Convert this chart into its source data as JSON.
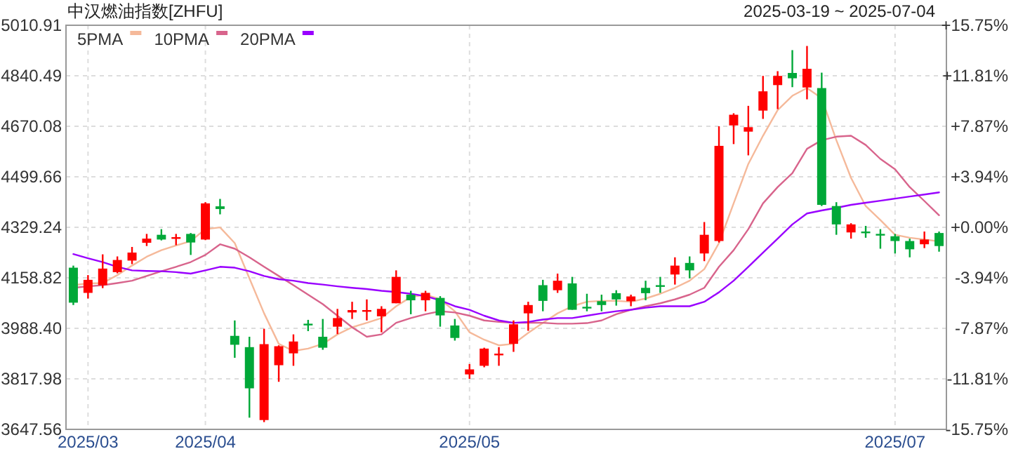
{
  "chart_data": {
    "type": "candlestick",
    "title": "中汉燃油指数[ZHFU]",
    "subtitle": "2025-03-19 ~ 2025-07-04",
    "categories": [
      null,
      "2025/03",
      null,
      null,
      null,
      null,
      null,
      null,
      null,
      "2025/04",
      null,
      null,
      null,
      null,
      null,
      null,
      null,
      null,
      null,
      null,
      null,
      null,
      null,
      null,
      null,
      null,
      null,
      "2025/05",
      null,
      null,
      null,
      null,
      null,
      null,
      null,
      null,
      null,
      null,
      null,
      null,
      null,
      null,
      null,
      null,
      null,
      null,
      null,
      null,
      null,
      null,
      null,
      null,
      null,
      null,
      null,
      null,
      "2025/07",
      null,
      null,
      null
    ],
    "ohlc": [
      [
        4193,
        4200,
        4067,
        4075
      ],
      [
        4108,
        4168,
        4089,
        4152
      ],
      [
        4134,
        4238,
        4124,
        4190
      ],
      [
        4178,
        4231,
        4174,
        4219
      ],
      [
        4217,
        4263,
        4205,
        4244
      ],
      [
        4277,
        4307,
        4266,
        4291
      ],
      [
        4304,
        4323,
        4285,
        4288
      ],
      [
        4294,
        4307,
        4269,
        4296
      ],
      [
        4307,
        4310,
        4236,
        4278
      ],
      [
        4288,
        4414,
        4286,
        4410
      ],
      [
        4400,
        4425,
        4373,
        4391
      ],
      [
        3963,
        4015,
        3889,
        3933
      ],
      [
        3925,
        3960,
        3687,
        3786
      ],
      [
        3679,
        3987,
        3672,
        3935
      ],
      [
        3864,
        3931,
        3808,
        3928
      ],
      [
        3904,
        3968,
        3862,
        3944
      ],
      [
        4004,
        4017,
        3979,
        4001
      ],
      [
        3960,
        4020,
        3916,
        3923
      ],
      [
        3994,
        4054,
        3969,
        4023
      ],
      [
        4042,
        4078,
        4020,
        4050
      ],
      [
        4048,
        4086,
        4015,
        4050
      ],
      [
        4029,
        4063,
        3975,
        4054
      ],
      [
        4073,
        4184,
        4073,
        4162
      ],
      [
        4102,
        4115,
        4036,
        4083
      ],
      [
        4083,
        4115,
        4046,
        4108
      ],
      [
        4091,
        4097,
        3994,
        4032
      ],
      [
        3998,
        4020,
        3947,
        3956
      ],
      [
        3833,
        3868,
        3818,
        3850
      ],
      [
        3862,
        3923,
        3857,
        3920
      ],
      [
        3898,
        3925,
        3862,
        3903
      ],
      [
        3936,
        4015,
        3909,
        4002
      ],
      [
        4039,
        4078,
        3980,
        4067
      ],
      [
        4134,
        4152,
        4046,
        4081
      ],
      [
        4117,
        4173,
        4108,
        4149
      ],
      [
        4140,
        4162,
        4051,
        4051
      ],
      [
        4061,
        4105,
        4046,
        4056
      ],
      [
        4080,
        4102,
        4046,
        4067
      ],
      [
        4107,
        4117,
        4065,
        4086
      ],
      [
        4080,
        4102,
        4063,
        4096
      ],
      [
        4125,
        4149,
        4083,
        4107
      ],
      [
        4134,
        4162,
        4108,
        4130
      ],
      [
        4170,
        4228,
        4136,
        4200
      ],
      [
        4209,
        4231,
        4157,
        4184
      ],
      [
        4241,
        4347,
        4215,
        4304
      ],
      [
        4283,
        4670,
        4278,
        4604
      ],
      [
        4673,
        4714,
        4610,
        4709
      ],
      [
        4652,
        4739,
        4572,
        4667
      ],
      [
        4723,
        4840,
        4695,
        4788
      ],
      [
        4809,
        4856,
        4728,
        4840
      ],
      [
        4850,
        4927,
        4802,
        4832
      ],
      [
        4801,
        4941,
        4761,
        4864
      ],
      [
        4799,
        4851,
        4401,
        4405
      ],
      [
        4401,
        4414,
        4304,
        4339
      ],
      [
        4312,
        4343,
        4291,
        4339
      ],
      [
        4315,
        4334,
        4294,
        4313
      ],
      [
        4307,
        4323,
        4257,
        4302
      ],
      [
        4299,
        4307,
        4241,
        4283
      ],
      [
        4283,
        4291,
        4228,
        4255
      ],
      [
        4272,
        4315,
        4259,
        4288
      ],
      [
        4310,
        4315,
        4247,
        4266
      ]
    ],
    "colors": [
      "#00a838",
      "#ff0000",
      "#ff0000",
      "#ff0000",
      "#ff0000",
      "#ff0000",
      "#00a838",
      "#ff0000",
      "#00a838",
      "#ff0000",
      "#00a838",
      "#00a838",
      "#00a838",
      "#ff0000",
      "#ff0000",
      "#ff0000",
      "#00a838",
      "#00a838",
      "#ff0000",
      "#ff0000",
      "#ff0000",
      "#ff0000",
      "#ff0000",
      "#00a838",
      "#ff0000",
      "#00a838",
      "#00a838",
      "#ff0000",
      "#ff0000",
      "#ff0000",
      "#ff0000",
      "#ff0000",
      "#00a838",
      "#ff0000",
      "#00a838",
      "#00a838",
      "#00a838",
      "#00a838",
      "#ff0000",
      "#00a838",
      "#00a838",
      "#ff0000",
      "#00a838",
      "#ff0000",
      "#ff0000",
      "#ff0000",
      "#ff0000",
      "#ff0000",
      "#ff0000",
      "#00a838",
      "#ff0000",
      "#00a838",
      "#00a838",
      "#ff0000",
      "#00a838",
      "#00a838",
      "#00a838",
      "#00a838",
      "#ff0000",
      "#00a838"
    ],
    "series": [
      {
        "name": "5PMA",
        "type": "line",
        "color": "#f5b99a",
        "values": [
          4134,
          4140,
          4141,
          4168,
          4200,
          4230,
          4252,
          4268,
          4283,
          4323,
          4329,
          4276,
          4157,
          4039,
          3936,
          3912,
          3920,
          3936,
          3968,
          3992,
          4007,
          4023,
          4063,
          4094,
          4102,
          4086,
          4046,
          3975,
          3950,
          3931,
          3936,
          3973,
          4007,
          4039,
          4063,
          4078,
          4081,
          4081,
          4078,
          4089,
          4105,
          4125,
          4149,
          4188,
          4276,
          4410,
          4543,
          4638,
          4725,
          4773,
          4799,
          4765,
          4623,
          4496,
          4401,
          4354,
          4304,
          4294,
          4288,
          4282
        ]
      },
      {
        "name": "10PMA",
        "type": "line",
        "color": "#d8648c",
        "values": [
          4125,
          4130,
          4134,
          4141,
          4149,
          4165,
          4181,
          4196,
          4212,
          4236,
          4272,
          4257,
          4228,
          4196,
          4165,
          4134,
          4102,
          4070,
          4031,
          3992,
          3960,
          3968,
          4007,
          4023,
          4036,
          4046,
          4042,
          4031,
          4015,
          4010,
          4007,
          4007,
          4007,
          4004,
          4004,
          4006,
          4015,
          4036,
          4051,
          4063,
          4073,
          4086,
          4102,
          4125,
          4196,
          4252,
          4323,
          4410,
          4465,
          4512,
          4594,
          4623,
          4635,
          4638,
          4607,
          4560,
          4525,
          4465,
          4418,
          4370
        ]
      },
      {
        "name": "20PMA",
        "type": "line",
        "color": "#9900ff",
        "values": [
          4239,
          4225,
          4212,
          4196,
          4184,
          4182,
          4181,
          4178,
          4173,
          4184,
          4196,
          4193,
          4181,
          4165,
          4154,
          4149,
          4141,
          4136,
          4130,
          4125,
          4121,
          4115,
          4111,
          4105,
          4097,
          4083,
          4063,
          4051,
          4031,
          4015,
          4007,
          4010,
          4018,
          4023,
          4023,
          4031,
          4039,
          4046,
          4051,
          4058,
          4063,
          4063,
          4063,
          4078,
          4110,
          4149,
          4196,
          4244,
          4291,
          4339,
          4376,
          4386,
          4395,
          4405,
          4412,
          4419,
          4426,
          4433,
          4440,
          4447
        ]
      }
    ],
    "ylim": [
      3647.56,
      5010.91
    ],
    "yticks": [
      3647.56,
      3817.98,
      {
        "value": 3988.4,
        "label": "3988.40"
      },
      4158.82,
      4329.24,
      4499.66,
      4670.08,
      4840.49,
      5010.91
    ],
    "y2lim": [
      -15.75,
      15.75
    ],
    "y2ticks": [
      {
        "value": -15.75,
        "label": "-15.75%"
      },
      {
        "value": -11.81,
        "label": "-11.81%"
      },
      {
        "value": -7.87,
        "label": "-7.87%"
      },
      {
        "value": -3.94,
        "label": "-3.94%"
      },
      {
        "value": 0,
        "label": "+0.00%"
      },
      {
        "value": 3.94,
        "label": "+3.94%"
      },
      {
        "value": 7.87,
        "label": "+7.87%"
      },
      {
        "value": 11.81,
        "label": "+11.81%"
      },
      {
        "value": 15.75,
        "label": "+15.75%"
      }
    ],
    "grid": true,
    "legend": "top left"
  }
}
